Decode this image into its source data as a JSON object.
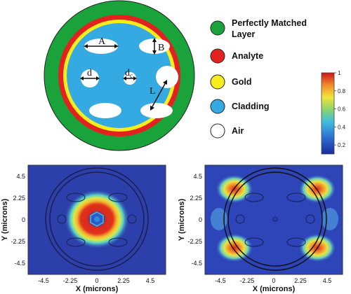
{
  "legend": [
    {
      "label_line1": "Perfectly Matched",
      "label_line2": "Layer",
      "color": "#19a33a"
    },
    {
      "label_line1": "Analyte",
      "label_line2": "",
      "color": "#e2221e"
    },
    {
      "label_line1": "Gold",
      "label_line2": "",
      "color": "#f7ec1c"
    },
    {
      "label_line1": "Cladding",
      "label_line2": "",
      "color": "#35a9e1"
    },
    {
      "label_line1": "Air",
      "label_line2": "",
      "color": "#ffffff"
    }
  ],
  "cross_section": {
    "dimension_labels": {
      "A": "A",
      "B": "B",
      "d": "d",
      "dc_main": "d",
      "dc_sub": "c",
      "L": "L"
    }
  },
  "colorbar": {
    "ticks": [
      "1",
      "0.8",
      "0.6",
      "0.4",
      "0.2"
    ],
    "max": 1,
    "min": 0.1
  },
  "field_plots": [
    {
      "xlabel": "X (microns)",
      "ylabel": "Y (microns)",
      "xticks": [
        "-4.5",
        "-2.25",
        "0",
        "2.25",
        "4.5"
      ],
      "yticks": [
        "4.5",
        "2.25",
        "0",
        "-2.25",
        "-4.5"
      ],
      "mode": "core"
    },
    {
      "xlabel": "X (microns)",
      "ylabel": "Y (microns)",
      "xticks": [
        "-4.5",
        "-2.25",
        "0",
        "2.25",
        "4.5"
      ],
      "yticks": [
        "4.5",
        "2.25",
        "0",
        "-2.25",
        "-4.5"
      ],
      "mode": "plasmon"
    }
  ]
}
